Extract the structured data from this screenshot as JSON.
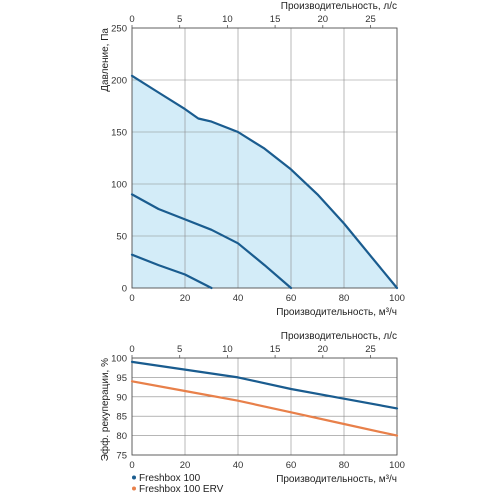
{
  "chart_data": [
    {
      "type": "area",
      "ylabel": "Давление, Па",
      "xlabel": "Производительность, м³/ч",
      "x2label": "Производительность, л/с",
      "xlim": [
        0,
        100
      ],
      "x_ticks": [
        0,
        20,
        40,
        60,
        80,
        100
      ],
      "ylim": [
        0,
        250
      ],
      "y_ticks": [
        0,
        50,
        100,
        150,
        200,
        250
      ],
      "x2lim": [
        0,
        27.78
      ],
      "x2_ticks": [
        0,
        5,
        10,
        15,
        20,
        25
      ],
      "grid": true,
      "fill_color": "#d3ecf8",
      "line_color": "#1a5c8f",
      "series": [
        {
          "x": [
            0,
            10,
            20,
            25,
            30,
            40,
            50,
            60,
            70,
            80,
            90,
            100
          ],
          "y": [
            204,
            188,
            172,
            163,
            160,
            150,
            134,
            114,
            90,
            62,
            31,
            0
          ]
        },
        {
          "x": [
            0,
            10,
            20,
            30,
            40,
            50,
            60
          ],
          "y": [
            90,
            76,
            66,
            56,
            43,
            22,
            0
          ]
        },
        {
          "x": [
            0,
            10,
            20,
            30
          ],
          "y": [
            32,
            22,
            13,
            0
          ]
        }
      ]
    },
    {
      "type": "line",
      "ylabel": "Эфф. рекуперации, %",
      "xlabel": "Производительность, м³/ч",
      "x2label": "Производительность, л/с",
      "xlim": [
        0,
        100
      ],
      "x_ticks": [
        0,
        20,
        40,
        60,
        80,
        100
      ],
      "ylim": [
        75,
        100
      ],
      "y_ticks": [
        75,
        80,
        85,
        90,
        95,
        100
      ],
      "x2lim": [
        0,
        27.78
      ],
      "x2_ticks": [
        0,
        5,
        10,
        15,
        20,
        25
      ],
      "grid": true,
      "legend_position": "bottom-left",
      "series": [
        {
          "name": "Freshbox 100",
          "color": "#1a5c8f",
          "x": [
            0,
            20,
            40,
            60,
            80,
            100
          ],
          "y": [
            99,
            97,
            95,
            92,
            89.5,
            87
          ]
        },
        {
          "name": "Freshbox 100 ERV",
          "color": "#e8804a",
          "x": [
            0,
            20,
            40,
            60,
            80,
            100
          ],
          "y": [
            94,
            91.5,
            89,
            86,
            83,
            80
          ]
        }
      ]
    }
  ]
}
